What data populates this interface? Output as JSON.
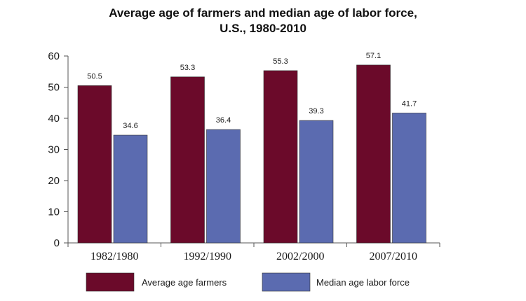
{
  "chart_data": {
    "type": "bar",
    "title_lines": [
      "Average age of farmers and median age of labor force,",
      "U.S., 1980-2010"
    ],
    "xlabel": "",
    "ylabel": "",
    "categories": [
      "1982/1980",
      "1992/1990",
      "2002/2000",
      "2007/2010"
    ],
    "series": [
      {
        "name": "Average age farmers",
        "values": [
          50.5,
          53.3,
          55.3,
          57.1
        ],
        "color": "#6b0a2a"
      },
      {
        "name": "Median age labor force",
        "values": [
          34.6,
          36.4,
          39.3,
          41.7
        ],
        "color": "#5b6bb0"
      }
    ],
    "ylim": [
      0,
      60
    ],
    "yticks": [
      0,
      10,
      20,
      30,
      40,
      50,
      60
    ],
    "grid": false,
    "legend_position": "bottom"
  }
}
